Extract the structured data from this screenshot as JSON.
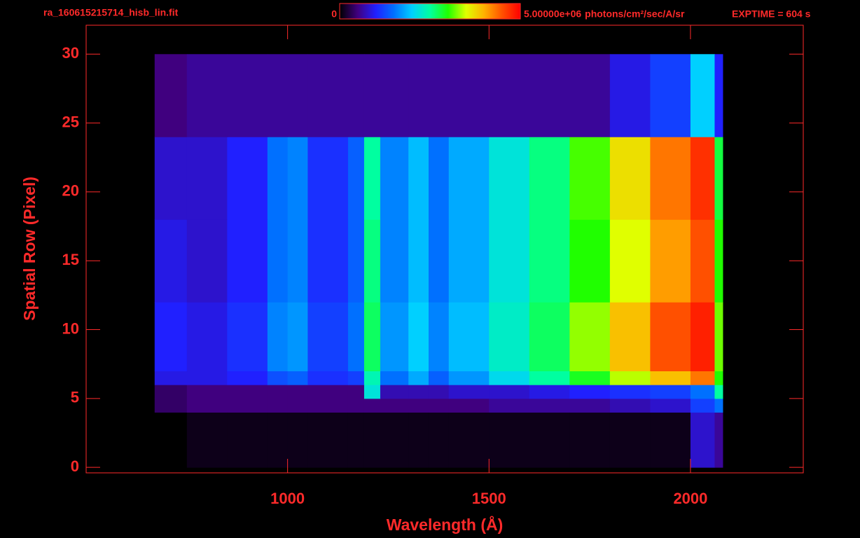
{
  "chart_data": {
    "type": "heatmap",
    "title": "ra_160615215714_hisb_lin.fit",
    "annotation": "EXPTIME = 604 s",
    "colorbar_unit": "photons/cm²/sec/A/sr",
    "colorbar_lim": [
      0,
      5000000
    ],
    "colorbar_ticks": [
      0,
      {
        "value": 5000000,
        "label": "5.00000e+06"
      }
    ],
    "colormap": [
      "#000000",
      "#40007f",
      "#2020ff",
      "#0070ff",
      "#00d0ff",
      "#00ffa0",
      "#20ff00",
      "#e0ff00",
      "#ffb000",
      "#ff5000",
      "#ff0000"
    ],
    "x_label": "Wavelength (Å)",
    "y_label": "Spatial Row (Pixel)",
    "xlim": [
      500,
      2280
    ],
    "ylim": [
      -0.4,
      32.1
    ],
    "xticks": [
      1000,
      1500,
      2000
    ],
    "yticks": [
      0,
      5,
      10,
      15,
      20,
      25,
      30
    ],
    "x_bins": [
      670,
      750,
      850,
      950,
      1000,
      1050,
      1150,
      1190,
      1230,
      1300,
      1350,
      1400,
      1500,
      1600,
      1700,
      1800,
      1900,
      2000,
      2060,
      2080
    ],
    "y_bins": [
      0,
      4,
      5,
      6,
      7,
      12,
      18,
      24,
      30
    ],
    "values": [
      [
        0,
        100000,
        100000,
        100000,
        100000,
        100000,
        100000,
        100000,
        100000,
        100000,
        100000,
        100000,
        100000,
        100000,
        100000,
        100000,
        100000,
        800000,
        600000
      ],
      [
        400000,
        500000,
        500000,
        500000,
        500000,
        500000,
        500000,
        500000,
        500000,
        500000,
        500000,
        500000,
        600000,
        600000,
        600000,
        700000,
        800000,
        1200000,
        1500000
      ],
      [
        400000,
        500000,
        500000,
        500000,
        500000,
        500000,
        500000,
        2200000,
        700000,
        700000,
        700000,
        800000,
        800000,
        900000,
        1000000,
        1100000,
        1200000,
        1500000,
        2500000
      ],
      [
        900000,
        900000,
        1000000,
        1300000,
        1400000,
        1100000,
        1200000,
        2400000,
        1500000,
        1800000,
        1400000,
        1700000,
        2100000,
        2500000,
        2900000,
        3400000,
        3900000,
        4300000,
        3000000
      ],
      [
        1000000,
        900000,
        1100000,
        1600000,
        1700000,
        1200000,
        1500000,
        2700000,
        1700000,
        2000000,
        1600000,
        1900000,
        2300000,
        2700000,
        3300000,
        3900000,
        4500000,
        4800000,
        3200000
      ],
      [
        900000,
        800000,
        1000000,
        1500000,
        1600000,
        1100000,
        1400000,
        2600000,
        1600000,
        1900000,
        1500000,
        1800000,
        2200000,
        2600000,
        3000000,
        3500000,
        4100000,
        4500000,
        3000000
      ],
      [
        800000,
        800000,
        1000000,
        1500000,
        1600000,
        1100000,
        1400000,
        2500000,
        1600000,
        1900000,
        1500000,
        1800000,
        2200000,
        2600000,
        3100000,
        3700000,
        4300000,
        4700000,
        2800000
      ],
      [
        500000,
        600000,
        600000,
        600000,
        600000,
        600000,
        600000,
        600000,
        600000,
        600000,
        600000,
        600000,
        600000,
        600000,
        600000,
        900000,
        1200000,
        2000000,
        1000000
      ]
    ]
  }
}
